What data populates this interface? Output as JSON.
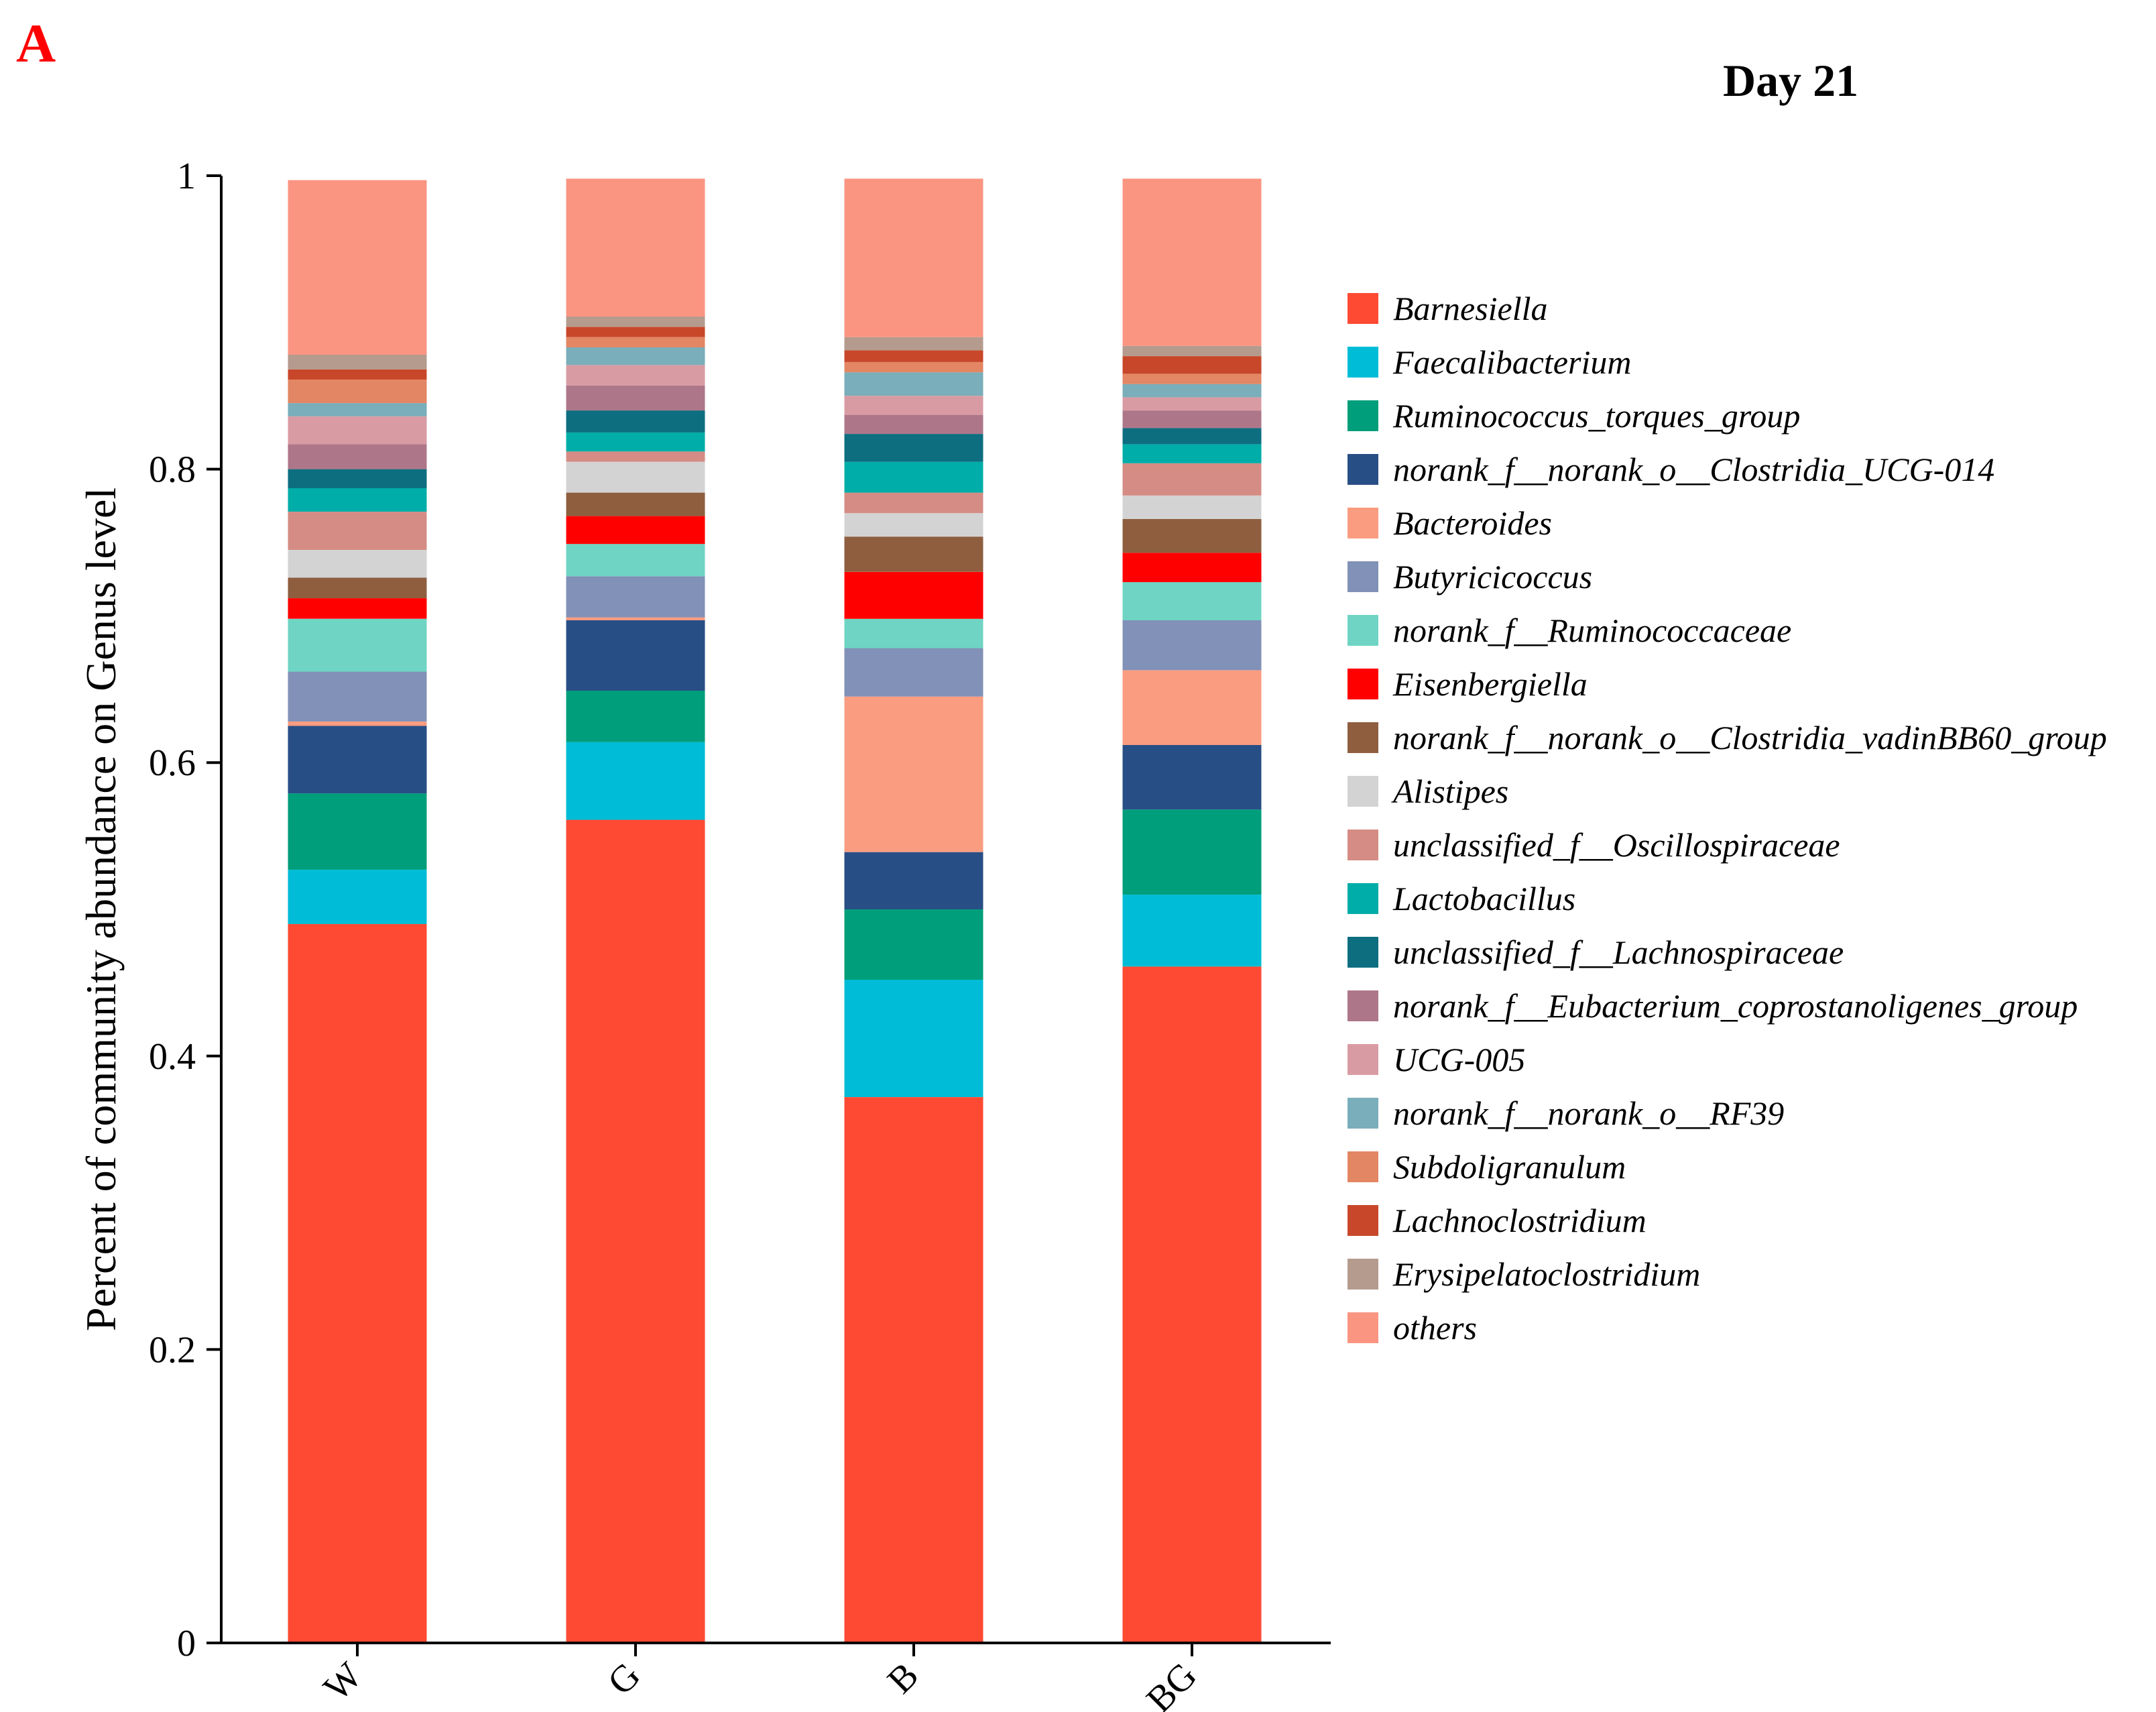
{
  "panel_letter": "A",
  "chart_data": {
    "type": "bar",
    "stacked": true,
    "title": "Day 21",
    "xlabel": "",
    "ylabel": "Percent of community abundance on Genus level",
    "ylim": [
      0,
      1
    ],
    "yticks": [
      "0",
      "0.2",
      "0.4",
      "0.6",
      "0.8",
      "1"
    ],
    "categories": [
      "W",
      "G",
      "B",
      "BG"
    ],
    "legend_position": "right",
    "series": [
      {
        "name": "Barnesiella",
        "color": "#FF4A33",
        "values": [
          0.49,
          0.561,
          0.372,
          0.461
        ]
      },
      {
        "name": "Faecalibacterium",
        "color": "#00BCD6",
        "values": [
          0.037,
          0.053,
          0.08,
          0.049
        ]
      },
      {
        "name": "Ruminococcus_torques_group",
        "color": "#009E7A",
        "values": [
          0.052,
          0.035,
          0.048,
          0.058
        ]
      },
      {
        "name": "norank_f__norank_o__Clostridia_UCG-014",
        "color": "#284E86",
        "values": [
          0.046,
          0.048,
          0.039,
          0.044
        ]
      },
      {
        "name": "Bacteroides",
        "color": "#F99C80",
        "values": [
          0.003,
          0.002,
          0.106,
          0.051
        ]
      },
      {
        "name": "Butyricicoccus",
        "color": "#8191B7",
        "values": [
          0.034,
          0.028,
          0.033,
          0.034
        ]
      },
      {
        "name": "norank_f__Ruminococcaceae",
        "color": "#6FD4C3",
        "values": [
          0.036,
          0.022,
          0.02,
          0.026
        ]
      },
      {
        "name": "Eisenbergiella",
        "color": "#FF0000",
        "values": [
          0.014,
          0.019,
          0.032,
          0.02
        ]
      },
      {
        "name": "norank_f__norank_o__Clostridia_vadinBB60_group",
        "color": "#8E5E3F",
        "values": [
          0.014,
          0.016,
          0.024,
          0.023
        ]
      },
      {
        "name": "Alistipes",
        "color": "#D3D3D3",
        "values": [
          0.019,
          0.021,
          0.016,
          0.016
        ]
      },
      {
        "name": "unclassified_f__Oscillospiraceae",
        "color": "#D48C84",
        "values": [
          0.026,
          0.007,
          0.014,
          0.022
        ]
      },
      {
        "name": "Lactobacillus",
        "color": "#00ADA8",
        "values": [
          0.016,
          0.013,
          0.021,
          0.013
        ]
      },
      {
        "name": "unclassified_f__Lachnospiraceae",
        "color": "#0D6E80",
        "values": [
          0.013,
          0.015,
          0.019,
          0.011
        ]
      },
      {
        "name": "norank_f__Eubacterium_coprostanoligenes_group",
        "color": "#AE7689",
        "values": [
          0.017,
          0.017,
          0.013,
          0.012
        ]
      },
      {
        "name": "UCG-005",
        "color": "#D99BA3",
        "values": [
          0.019,
          0.014,
          0.013,
          0.009
        ]
      },
      {
        "name": "norank_f__norank_o__RF39",
        "color": "#79AEBA",
        "values": [
          0.009,
          0.012,
          0.016,
          0.009
        ]
      },
      {
        "name": "Subdoligranulum",
        "color": "#E38663",
        "values": [
          0.016,
          0.007,
          0.007,
          0.007
        ]
      },
      {
        "name": "Lachnoclostridium",
        "color": "#C8472A",
        "values": [
          0.007,
          0.007,
          0.008,
          0.012
        ]
      },
      {
        "name": "Erysipelatoclostridium",
        "color": "#B49B8E",
        "values": [
          0.01,
          0.007,
          0.009,
          0.007
        ]
      },
      {
        "name": "others",
        "color": "#FA9582",
        "values": [
          0.119,
          0.094,
          0.108,
          0.114
        ]
      }
    ]
  }
}
